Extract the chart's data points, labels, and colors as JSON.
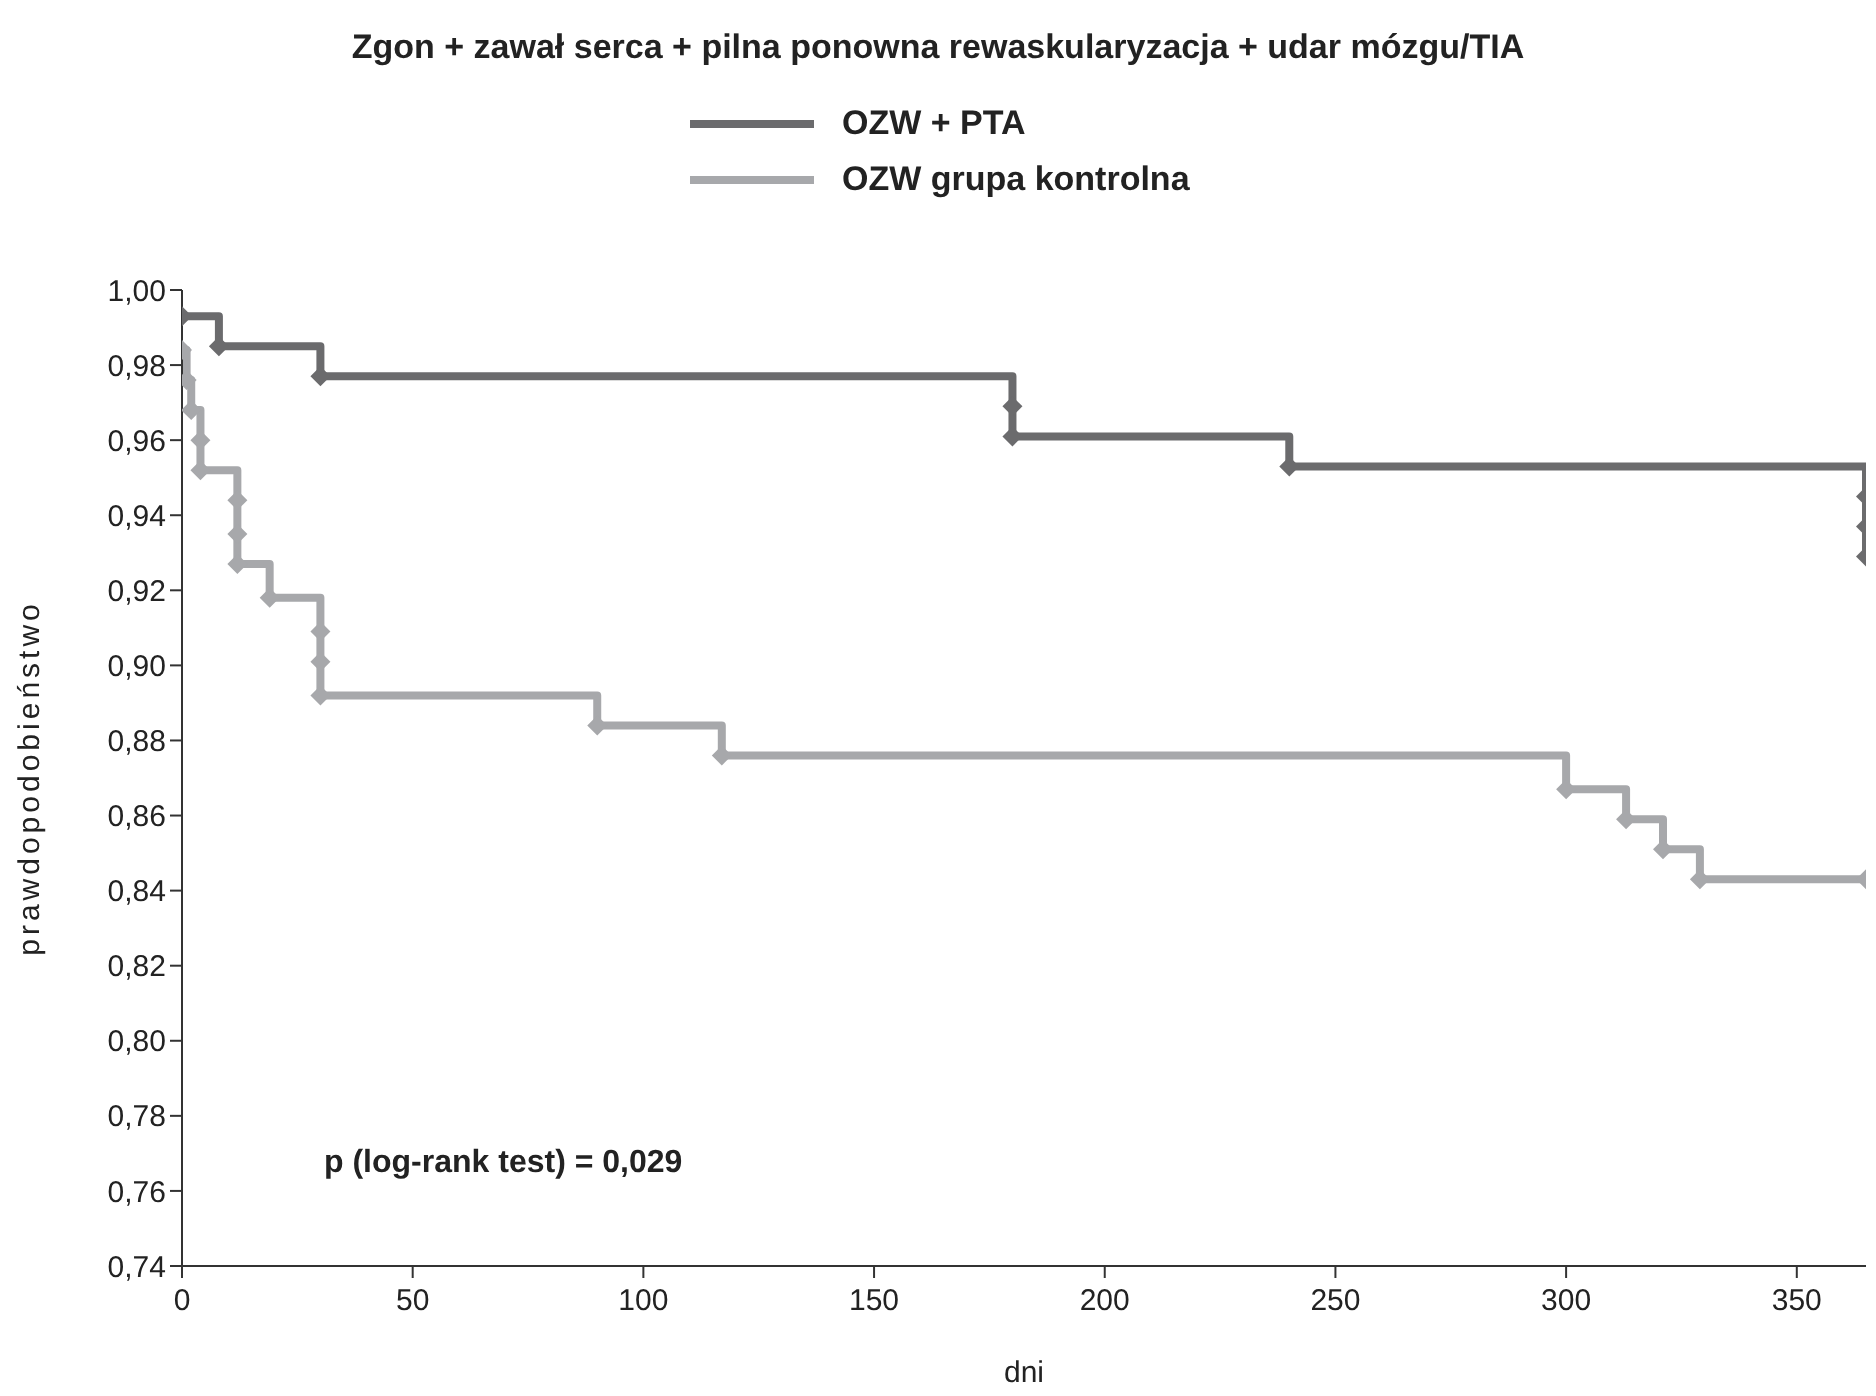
{
  "chart_data": {
    "type": "step",
    "title": "Zgon + zawał serca + pilna ponowna rewaskularyzacja + udar mózgu/TIA",
    "xlabel": "dni",
    "ylabel": "prawdopodobieństwo",
    "series": [
      {
        "name": "OZW + PTA",
        "color": "#6b6b6d",
        "x": [
          0,
          8,
          30,
          180,
          180,
          240,
          365,
          365,
          365
        ],
        "values": [
          0.993,
          0.985,
          0.977,
          0.969,
          0.961,
          0.953,
          0.945,
          0.937,
          0.929
        ]
      },
      {
        "name": "OZW grupa kontrolna",
        "color": "#a7a8ab",
        "x": [
          0,
          1,
          2,
          4,
          4,
          12,
          12,
          12,
          19,
          30,
          30,
          30,
          90,
          117,
          300,
          313,
          321,
          329,
          365
        ],
        "values": [
          0.984,
          0.976,
          0.968,
          0.96,
          0.952,
          0.944,
          0.935,
          0.927,
          0.918,
          0.909,
          0.901,
          0.892,
          0.884,
          0.876,
          0.867,
          0.859,
          0.851,
          0.843,
          0.843
        ]
      }
    ],
    "xlim": [
      0,
      365
    ],
    "xticks": [
      0,
      50,
      100,
      150,
      200,
      250,
      300,
      350
    ],
    "ylim": [
      0.74,
      1
    ],
    "yticks": [
      {
        "value": 0.74,
        "label": "0,74"
      },
      {
        "value": 0.76,
        "label": "0,76"
      },
      {
        "value": 0.78,
        "label": "0,78"
      },
      {
        "value": 0.8,
        "label": "0,80"
      },
      {
        "value": 0.82,
        "label": "0,82"
      },
      {
        "value": 0.84,
        "label": "0,84"
      },
      {
        "value": 0.86,
        "label": "0,86"
      },
      {
        "value": 0.88,
        "label": "0,88"
      },
      {
        "value": 0.9,
        "label": "0,90"
      },
      {
        "value": 0.92,
        "label": "0,92"
      },
      {
        "value": 0.94,
        "label": "0,94"
      },
      {
        "value": 0.96,
        "label": "0,96"
      },
      {
        "value": 0.98,
        "label": "0,98"
      },
      {
        "value": 1,
        "label": "1,00"
      }
    ],
    "annotations": [
      "p (log-rank test) = 0,029"
    ],
    "legend": "top",
    "marker": "diamond",
    "line_style": "solid",
    "grid": false
  }
}
